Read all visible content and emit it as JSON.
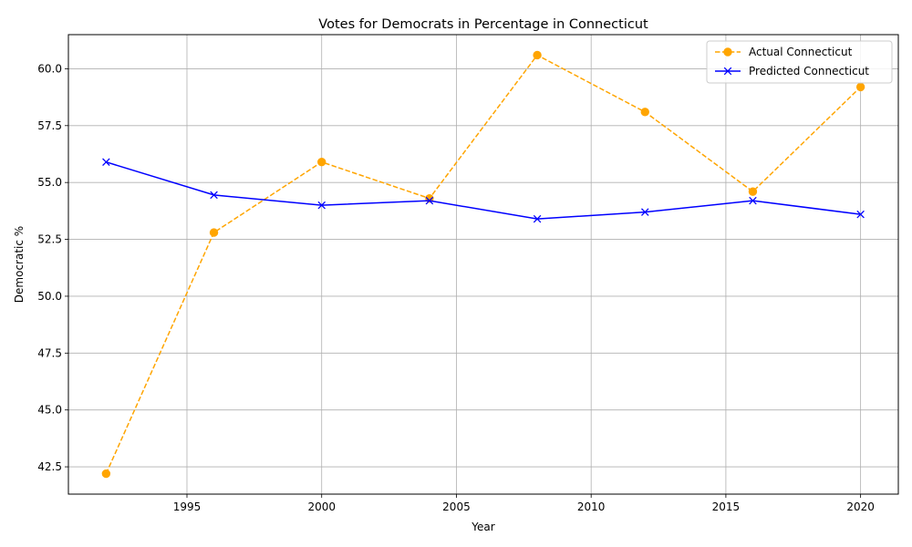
{
  "chart_data": {
    "type": "line",
    "title": "Votes for Democrats in Percentage in Connecticut",
    "xlabel": "Year",
    "ylabel": "Democratic %",
    "xlim": [
      1990.6,
      2021.4
    ],
    "ylim": [
      41.3,
      61.5
    ],
    "xticks": [
      1995,
      2000,
      2005,
      2010,
      2015,
      2020
    ],
    "yticks": [
      42.5,
      45.0,
      47.5,
      50.0,
      52.5,
      55.0,
      57.5,
      60.0
    ],
    "grid": true,
    "legend_position": "top-right",
    "x": [
      1992,
      1996,
      2000,
      2004,
      2008,
      2012,
      2016,
      2020
    ],
    "series": [
      {
        "name": "Actual Connecticut",
        "color": "#ffa500",
        "line_style": "dashed",
        "marker": "circle",
        "values": [
          42.2,
          52.8,
          55.9,
          54.3,
          60.6,
          58.1,
          54.6,
          59.2
        ]
      },
      {
        "name": "Predicted Connecticut",
        "color": "#0000ff",
        "line_style": "solid",
        "marker": "x",
        "values": [
          55.9,
          54.45,
          54.0,
          54.2,
          53.4,
          53.7,
          54.2,
          53.6
        ]
      }
    ]
  }
}
